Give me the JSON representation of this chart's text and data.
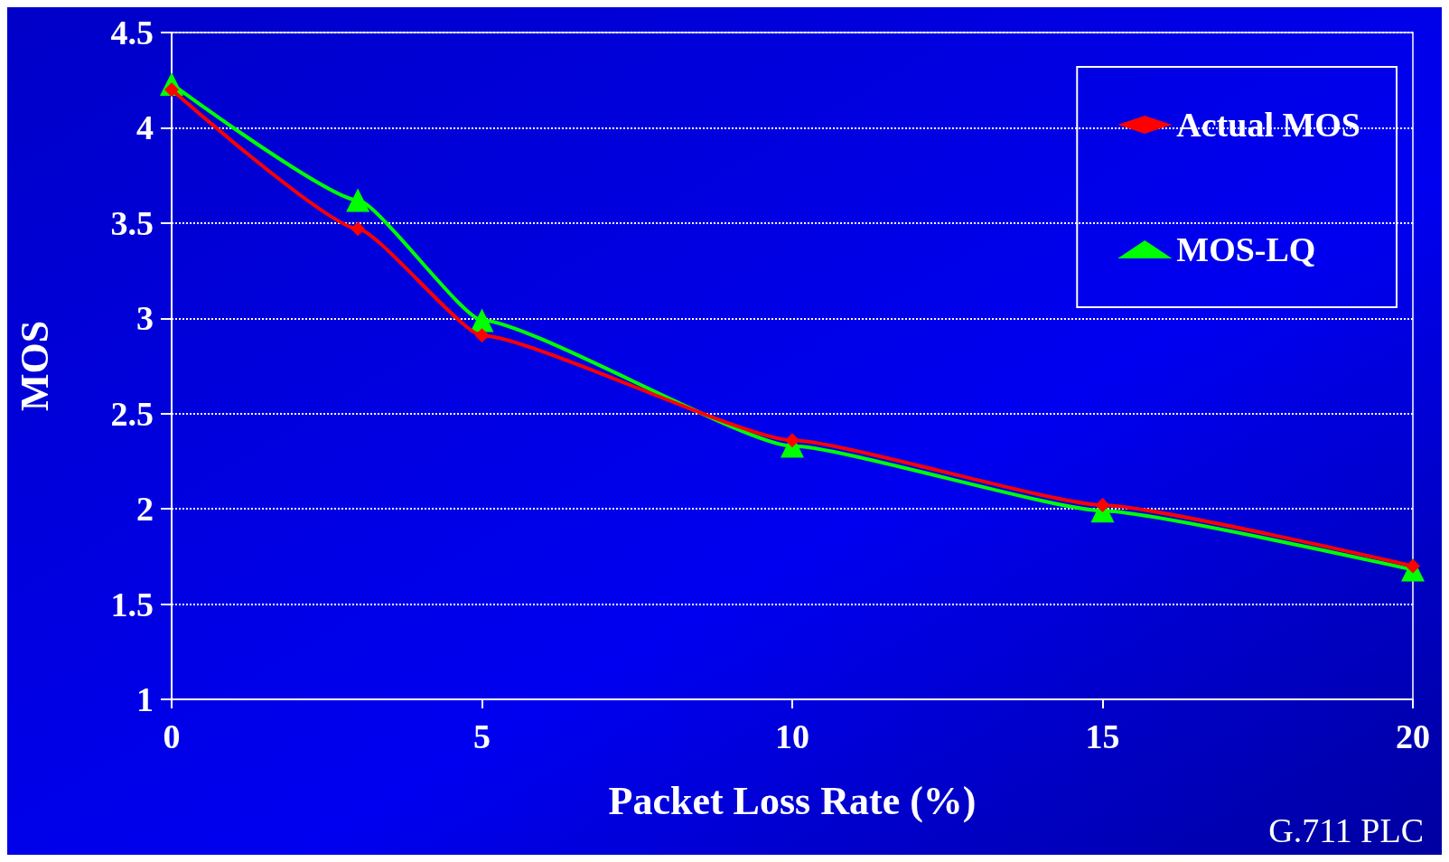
{
  "chart_data": {
    "type": "line",
    "xlabel": "Packet Loss Rate (%)",
    "ylabel": "MOS",
    "x": [
      0,
      3,
      5,
      10,
      15,
      20
    ],
    "series": [
      {
        "name": "Actual MOS",
        "color": "#ff0000",
        "marker": "diamond",
        "values": [
          4.2,
          3.47,
          2.91,
          2.36,
          2.02,
          1.7
        ]
      },
      {
        "name": "MOS-LQ",
        "color": "#00ff00",
        "marker": "triangle",
        "values": [
          4.23,
          3.62,
          2.99,
          2.33,
          1.99,
          1.68
        ]
      }
    ],
    "xlim": [
      0,
      20
    ],
    "xticks": [
      0,
      5,
      10,
      15,
      20
    ],
    "ylim": [
      1,
      4.5
    ],
    "yticks": [
      1,
      1.5,
      2,
      2.5,
      3,
      3.5,
      4,
      4.5
    ],
    "grid": "y",
    "legend": "top right",
    "line_style": "solid",
    "annotations": [
      "G.711 PLC"
    ]
  }
}
